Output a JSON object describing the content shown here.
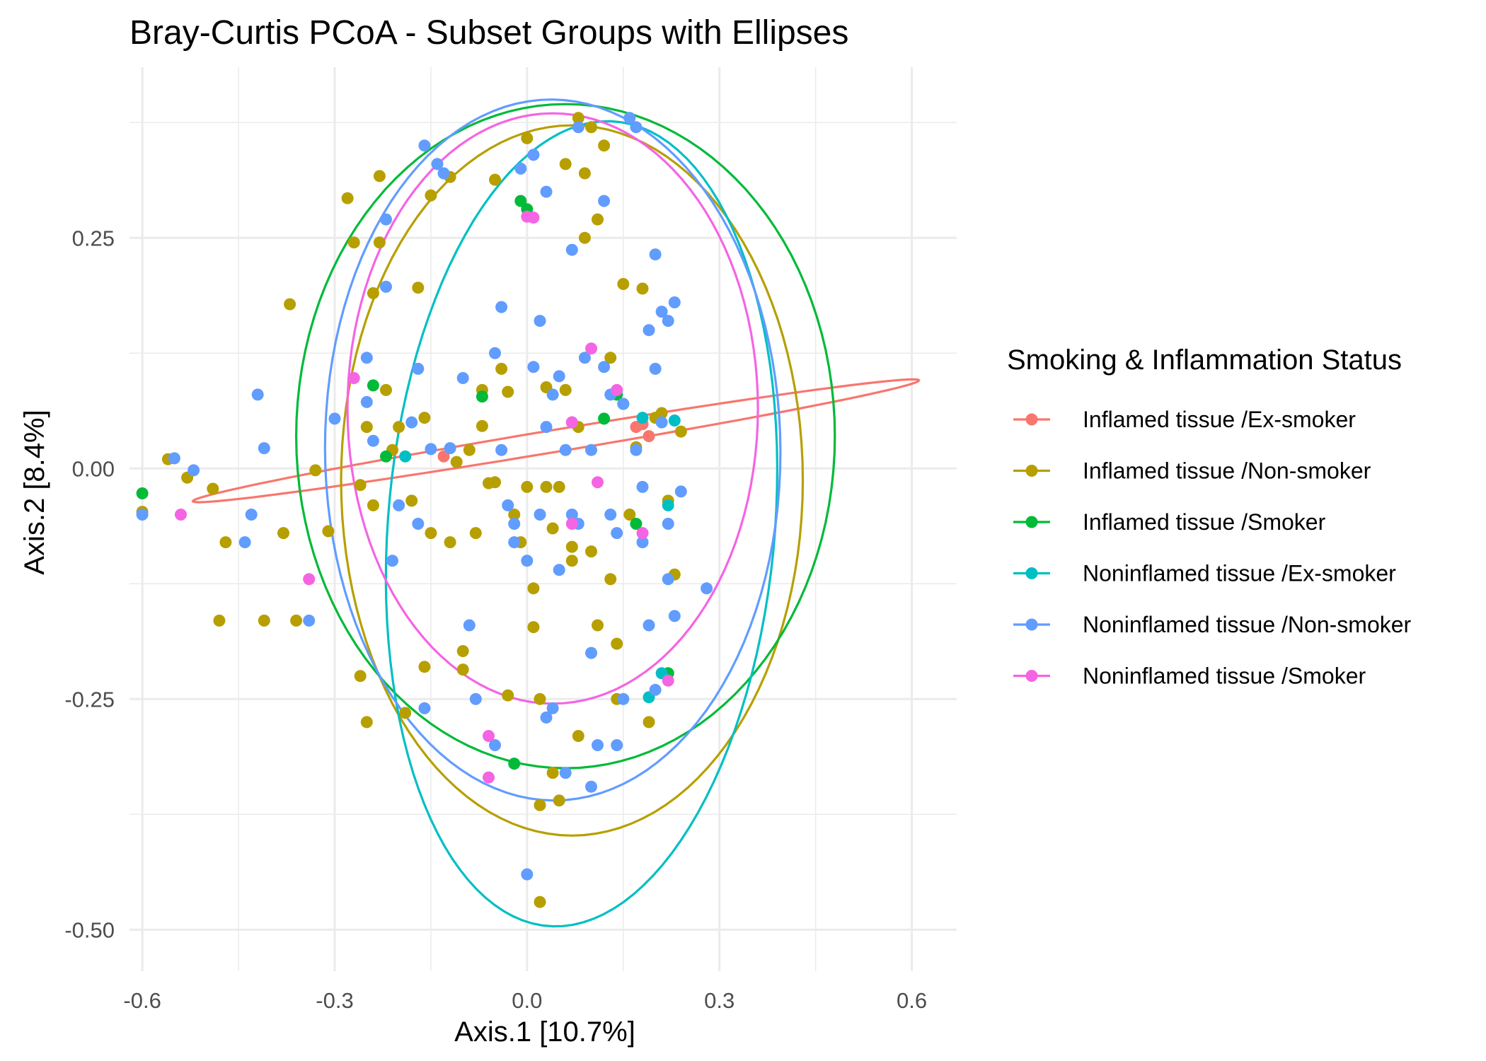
{
  "chart_data": {
    "type": "scatter",
    "title": "Bray-Curtis PCoA - Subset Groups with Ellipses",
    "xlabel": "Axis.1   [10.7%]",
    "ylabel": "Axis.2   [8.4%]",
    "xlim": [
      -0.62,
      0.67
    ],
    "ylim": [
      -0.545,
      0.435
    ],
    "x_ticks": [
      -0.6,
      -0.3,
      0.0,
      0.3,
      0.6
    ],
    "x_tick_labels": [
      "-0.6",
      "-0.3",
      "0.0",
      "0.3",
      "0.6"
    ],
    "y_ticks": [
      -0.5,
      -0.25,
      0.0,
      0.25
    ],
    "y_tick_labels": [
      "-0.50",
      "-0.25",
      "0.00",
      "0.25"
    ],
    "grid": true,
    "legend_title": "Smoking & Inflammation Status",
    "legend_position": "right",
    "series": [
      {
        "name": "Inflamed tissue /Ex-smoker",
        "color": "#F8766D",
        "points": [
          [
            -0.13,
            0.013
          ],
          [
            0.17,
            0.045
          ],
          [
            0.18,
            0.048
          ],
          [
            0.19,
            0.035
          ]
        ],
        "ellipse": {
          "cx": 0.045,
          "cy": 0.03,
          "rx": 0.57,
          "ry": 0.012,
          "angle_deg": 6.6
        }
      },
      {
        "name": "Inflamed tissue /Non-smoker",
        "color": "#B79F00",
        "points": [
          [
            -0.6,
            -0.047
          ],
          [
            -0.56,
            0.01
          ],
          [
            -0.53,
            -0.01
          ],
          [
            -0.49,
            -0.022
          ],
          [
            -0.47,
            -0.08
          ],
          [
            -0.48,
            -0.165
          ],
          [
            -0.41,
            -0.165
          ],
          [
            -0.38,
            -0.07
          ],
          [
            -0.37,
            0.178
          ],
          [
            -0.36,
            -0.165
          ],
          [
            -0.33,
            -0.002
          ],
          [
            -0.31,
            -0.068
          ],
          [
            -0.28,
            0.293
          ],
          [
            -0.27,
            0.245
          ],
          [
            -0.26,
            -0.225
          ],
          [
            -0.25,
            -0.275
          ],
          [
            -0.25,
            0.045
          ],
          [
            -0.24,
            0.19
          ],
          [
            -0.24,
            -0.04
          ],
          [
            -0.23,
            0.317
          ],
          [
            -0.23,
            0.245
          ],
          [
            -0.22,
            0.085
          ],
          [
            -0.21,
            0.02
          ],
          [
            -0.2,
            0.045
          ],
          [
            -0.19,
            -0.265
          ],
          [
            -0.18,
            -0.035
          ],
          [
            -0.17,
            0.196
          ],
          [
            -0.16,
            0.055
          ],
          [
            -0.16,
            -0.215
          ],
          [
            -0.15,
            0.296
          ],
          [
            -0.15,
            -0.07
          ],
          [
            -0.12,
            0.316
          ],
          [
            -0.12,
            -0.08
          ],
          [
            -0.1,
            -0.198
          ],
          [
            -0.1,
            -0.218
          ],
          [
            -0.09,
            0.02
          ],
          [
            -0.08,
            -0.07
          ],
          [
            -0.07,
            0.085
          ],
          [
            -0.07,
            0.046
          ],
          [
            -0.06,
            -0.016
          ],
          [
            -0.05,
            0.313
          ],
          [
            -0.04,
            0.108
          ],
          [
            -0.03,
            0.083
          ],
          [
            -0.03,
            -0.246
          ],
          [
            -0.02,
            -0.05
          ],
          [
            -0.01,
            -0.08
          ],
          [
            -0.0,
            0.358
          ],
          [
            0.01,
            -0.13
          ],
          [
            0.01,
            -0.172
          ],
          [
            0.02,
            -0.365
          ],
          [
            0.02,
            -0.47
          ],
          [
            0.02,
            -0.25
          ],
          [
            0.03,
            0.088
          ],
          [
            0.03,
            -0.02
          ],
          [
            0.04,
            -0.065
          ],
          [
            0.04,
            -0.33
          ],
          [
            0.05,
            -0.36
          ],
          [
            0.05,
            -0.02
          ],
          [
            0.06,
            0.33
          ],
          [
            0.06,
            0.085
          ],
          [
            0.07,
            -0.085
          ],
          [
            0.07,
            -0.1
          ],
          [
            0.08,
            0.38
          ],
          [
            0.08,
            -0.29
          ],
          [
            0.09,
            0.25
          ],
          [
            0.09,
            0.32
          ],
          [
            0.1,
            0.37
          ],
          [
            0.1,
            -0.09
          ],
          [
            0.11,
            0.27
          ],
          [
            0.11,
            -0.17
          ],
          [
            0.12,
            0.35
          ],
          [
            0.13,
            0.12
          ],
          [
            0.13,
            -0.12
          ],
          [
            0.14,
            -0.25
          ],
          [
            0.14,
            -0.19
          ],
          [
            0.15,
            0.2
          ],
          [
            0.16,
            -0.05
          ],
          [
            0.17,
            0.023
          ],
          [
            0.18,
            0.195
          ],
          [
            0.19,
            -0.275
          ],
          [
            0.2,
            0.055
          ],
          [
            0.21,
            0.06
          ],
          [
            0.22,
            -0.035
          ],
          [
            0.23,
            -0.115
          ],
          [
            0.24,
            0.04
          ],
          [
            -0.26,
            -0.018
          ],
          [
            -0.11,
            0.007
          ],
          [
            -0.05,
            -0.015
          ],
          [
            0.0,
            -0.02
          ],
          [
            0.08,
            0.045
          ]
        ],
        "ellipse": {
          "cx": 0.07,
          "cy": -0.013,
          "rx": 0.36,
          "ry": 0.385,
          "angle_deg": 0
        }
      },
      {
        "name": "Inflamed tissue /Smoker",
        "color": "#00BA38",
        "points": [
          [
            -0.6,
            -0.027
          ],
          [
            -0.24,
            0.09
          ],
          [
            -0.22,
            0.013
          ],
          [
            -0.07,
            0.078
          ],
          [
            -0.01,
            0.29
          ],
          [
            0.0,
            0.281
          ],
          [
            0.12,
            0.054
          ],
          [
            0.14,
            0.08
          ],
          [
            0.15,
            0.07
          ],
          [
            0.17,
            -0.06
          ],
          [
            0.22,
            -0.222
          ],
          [
            -0.02,
            -0.32
          ]
        ],
        "ellipse": {
          "cx": 0.06,
          "cy": 0.035,
          "rx": 0.42,
          "ry": 0.36,
          "angle_deg": 0
        }
      },
      {
        "name": "Noninflamed tissue /Ex-smoker",
        "color": "#00BFC4",
        "points": [
          [
            -0.19,
            0.013
          ],
          [
            0.18,
            0.055
          ],
          [
            0.19,
            -0.248
          ],
          [
            0.21,
            -0.222
          ],
          [
            0.22,
            -0.04
          ],
          [
            0.23,
            0.052
          ]
        ],
        "ellipse": {
          "cx": 0.085,
          "cy": -0.06,
          "rx": 0.3,
          "ry": 0.44,
          "angle_deg": -10
        }
      },
      {
        "name": "Noninflamed tissue /Non-smoker",
        "color": "#619CFF",
        "points": [
          [
            -0.6,
            -0.05
          ],
          [
            -0.55,
            0.011
          ],
          [
            -0.52,
            -0.002
          ],
          [
            -0.43,
            -0.05
          ],
          [
            -0.42,
            0.08
          ],
          [
            -0.41,
            0.022
          ],
          [
            -0.44,
            -0.08
          ],
          [
            -0.34,
            -0.165
          ],
          [
            -0.3,
            0.054
          ],
          [
            -0.25,
            0.12
          ],
          [
            -0.25,
            0.072
          ],
          [
            -0.24,
            0.03
          ],
          [
            -0.22,
            0.27
          ],
          [
            -0.22,
            0.197
          ],
          [
            -0.21,
            -0.1
          ],
          [
            -0.2,
            -0.04
          ],
          [
            -0.18,
            0.05
          ],
          [
            -0.17,
            0.108
          ],
          [
            -0.17,
            -0.06
          ],
          [
            -0.16,
            -0.26
          ],
          [
            -0.16,
            0.35
          ],
          [
            -0.15,
            0.021
          ],
          [
            -0.14,
            0.33
          ],
          [
            -0.13,
            0.32
          ],
          [
            -0.1,
            0.098
          ],
          [
            -0.09,
            -0.17
          ],
          [
            -0.08,
            -0.25
          ],
          [
            -0.05,
            -0.3
          ],
          [
            -0.05,
            0.125
          ],
          [
            -0.04,
            0.175
          ],
          [
            -0.03,
            -0.04
          ],
          [
            -0.02,
            -0.06
          ],
          [
            -0.02,
            -0.08
          ],
          [
            -0.01,
            0.325
          ],
          [
            0.0,
            -0.1
          ],
          [
            0.01,
            0.34
          ],
          [
            0.01,
            0.11
          ],
          [
            0.02,
            0.16
          ],
          [
            0.02,
            -0.05
          ],
          [
            0.03,
            0.3
          ],
          [
            0.03,
            0.045
          ],
          [
            0.04,
            0.08
          ],
          [
            0.05,
            0.1
          ],
          [
            0.05,
            -0.11
          ],
          [
            0.06,
            -0.33
          ],
          [
            0.06,
            0.02
          ],
          [
            0.07,
            0.237
          ],
          [
            0.07,
            -0.05
          ],
          [
            0.08,
            -0.06
          ],
          [
            0.08,
            0.37
          ],
          [
            0.09,
            0.12
          ],
          [
            0.1,
            0.02
          ],
          [
            0.1,
            -0.2
          ],
          [
            0.11,
            -0.3
          ],
          [
            0.12,
            0.29
          ],
          [
            0.12,
            0.11
          ],
          [
            0.13,
            0.08
          ],
          [
            0.13,
            -0.05
          ],
          [
            0.14,
            -0.07
          ],
          [
            0.14,
            -0.3
          ],
          [
            0.15,
            0.07
          ],
          [
            0.15,
            -0.25
          ],
          [
            0.16,
            0.38
          ],
          [
            0.17,
            0.37
          ],
          [
            0.17,
            0.02
          ],
          [
            0.18,
            -0.08
          ],
          [
            0.19,
            0.15
          ],
          [
            0.19,
            -0.17
          ],
          [
            0.2,
            0.232
          ],
          [
            0.2,
            0.108
          ],
          [
            0.21,
            0.17
          ],
          [
            0.21,
            0.05
          ],
          [
            0.22,
            -0.06
          ],
          [
            0.22,
            0.16
          ],
          [
            0.23,
            0.18
          ],
          [
            0.23,
            -0.16
          ],
          [
            0.24,
            -0.025
          ],
          [
            0.28,
            -0.13
          ],
          [
            0.22,
            -0.12
          ],
          [
            0.18,
            -0.02
          ],
          [
            0.07,
            0.05
          ],
          [
            -0.04,
            0.02
          ],
          [
            -0.12,
            0.022
          ],
          [
            0.0,
            -0.44
          ],
          [
            0.04,
            -0.26
          ],
          [
            0.1,
            -0.345
          ],
          [
            0.03,
            -0.27
          ],
          [
            0.2,
            -0.24
          ]
        ],
        "ellipse": {
          "cx": 0.04,
          "cy": 0.02,
          "rx": 0.355,
          "ry": 0.38,
          "angle_deg": 3
        }
      },
      {
        "name": "Noninflamed tissue /Smoker",
        "color": "#F564E3",
        "points": [
          [
            -0.54,
            -0.05
          ],
          [
            -0.34,
            -0.12
          ],
          [
            -0.27,
            0.098
          ],
          [
            -0.06,
            -0.335
          ],
          [
            -0.06,
            -0.29
          ],
          [
            0.0,
            0.273
          ],
          [
            0.01,
            0.272
          ],
          [
            0.07,
            0.05
          ],
          [
            0.07,
            -0.06
          ],
          [
            0.1,
            0.13
          ],
          [
            0.11,
            -0.015
          ],
          [
            0.14,
            0.085
          ],
          [
            0.18,
            -0.07
          ],
          [
            0.22,
            -0.23
          ]
        ],
        "ellipse": {
          "cx": 0.04,
          "cy": 0.065,
          "rx": 0.32,
          "ry": 0.32,
          "angle_deg": 0
        }
      }
    ]
  }
}
